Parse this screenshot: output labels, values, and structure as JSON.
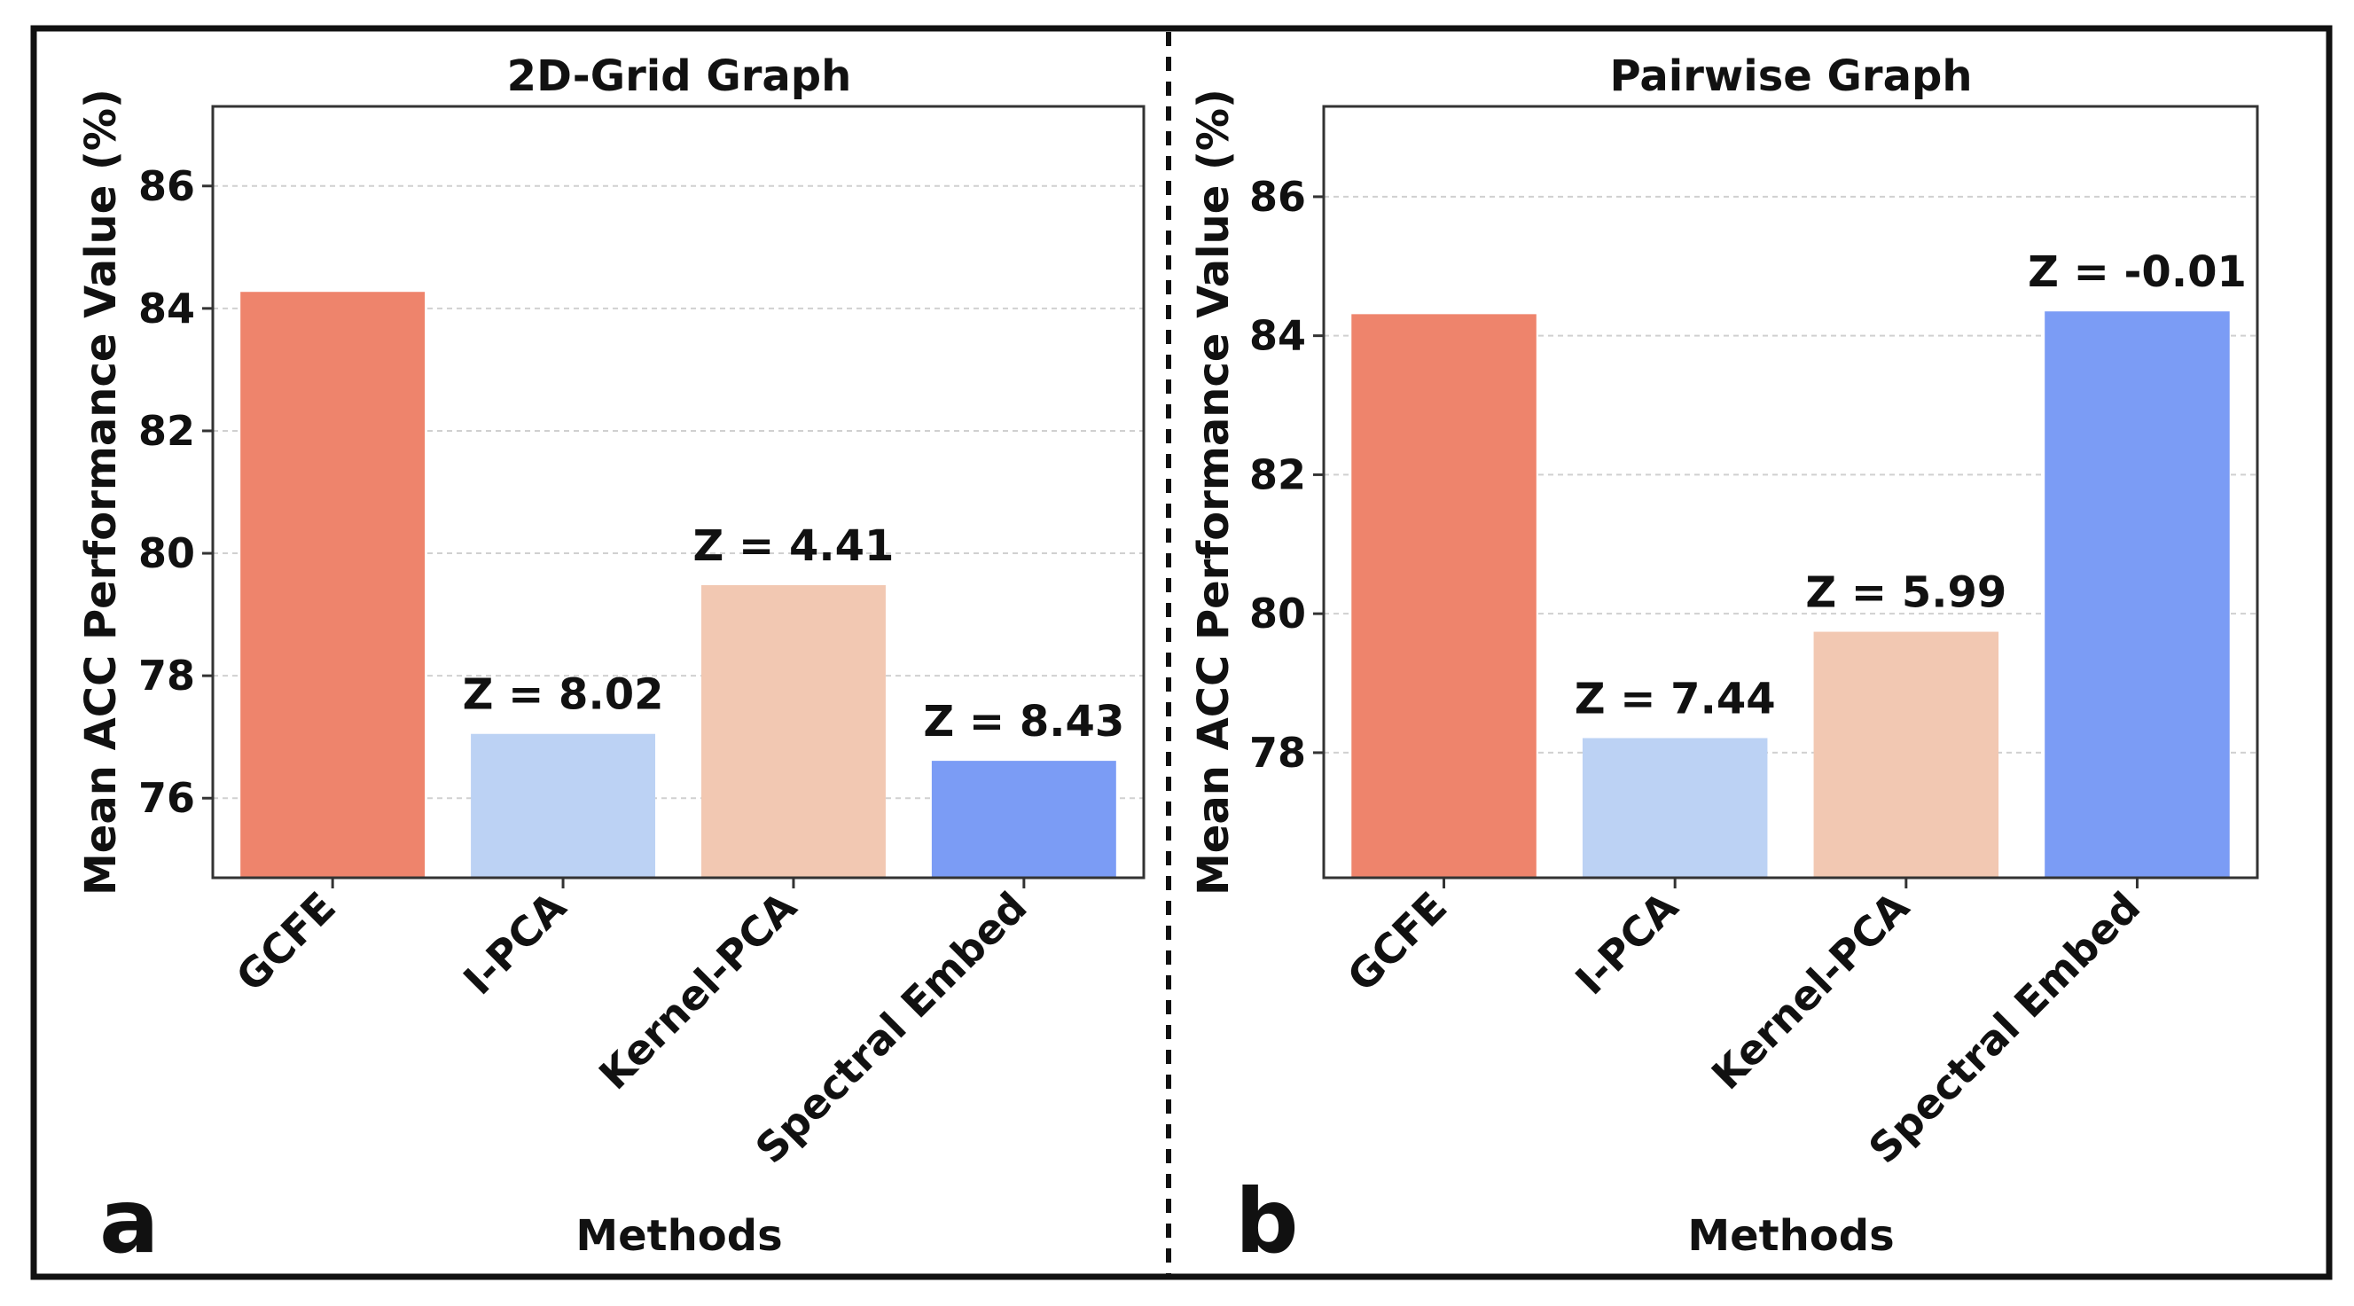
{
  "chart_data": [
    {
      "panel_letter": "a",
      "type": "bar",
      "title": "2D-Grid Graph",
      "xlabel": "Methods",
      "ylabel": "Mean ACC Performance Value (%)",
      "ylim": [
        74.7,
        87.3
      ],
      "yticks": [
        76,
        78,
        80,
        82,
        84,
        86
      ],
      "grid": true,
      "categories": [
        "GCFE",
        "I-PCA",
        "Kernel-PCA",
        "Spectral Embed"
      ],
      "values": [
        84.27,
        77.05,
        79.48,
        76.61
      ],
      "annotations": [
        "",
        "Z = 8.02",
        "Z = 4.41",
        "Z = 8.43"
      ],
      "colors": [
        "#ee846c",
        "#bcd2f4",
        "#f2c8b2",
        "#7b9cf5"
      ]
    },
    {
      "panel_letter": "b",
      "type": "bar",
      "title": "Pairwise Graph",
      "xlabel": "Methods",
      "ylabel": "Mean ACC Performance Value (%)",
      "ylim": [
        76.2,
        87.3
      ],
      "yticks": [
        78,
        80,
        82,
        84,
        86
      ],
      "grid": true,
      "categories": [
        "GCFE",
        "I-PCA",
        "Kernel-PCA",
        "Spectral Embed"
      ],
      "values": [
        84.31,
        78.21,
        79.74,
        84.35
      ],
      "annotations": [
        "",
        "Z = 7.44",
        "Z = 5.99",
        "Z = -0.01"
      ],
      "colors": [
        "#ee846c",
        "#bcd2f4",
        "#f2c8b2",
        "#7b9cf5"
      ]
    }
  ]
}
